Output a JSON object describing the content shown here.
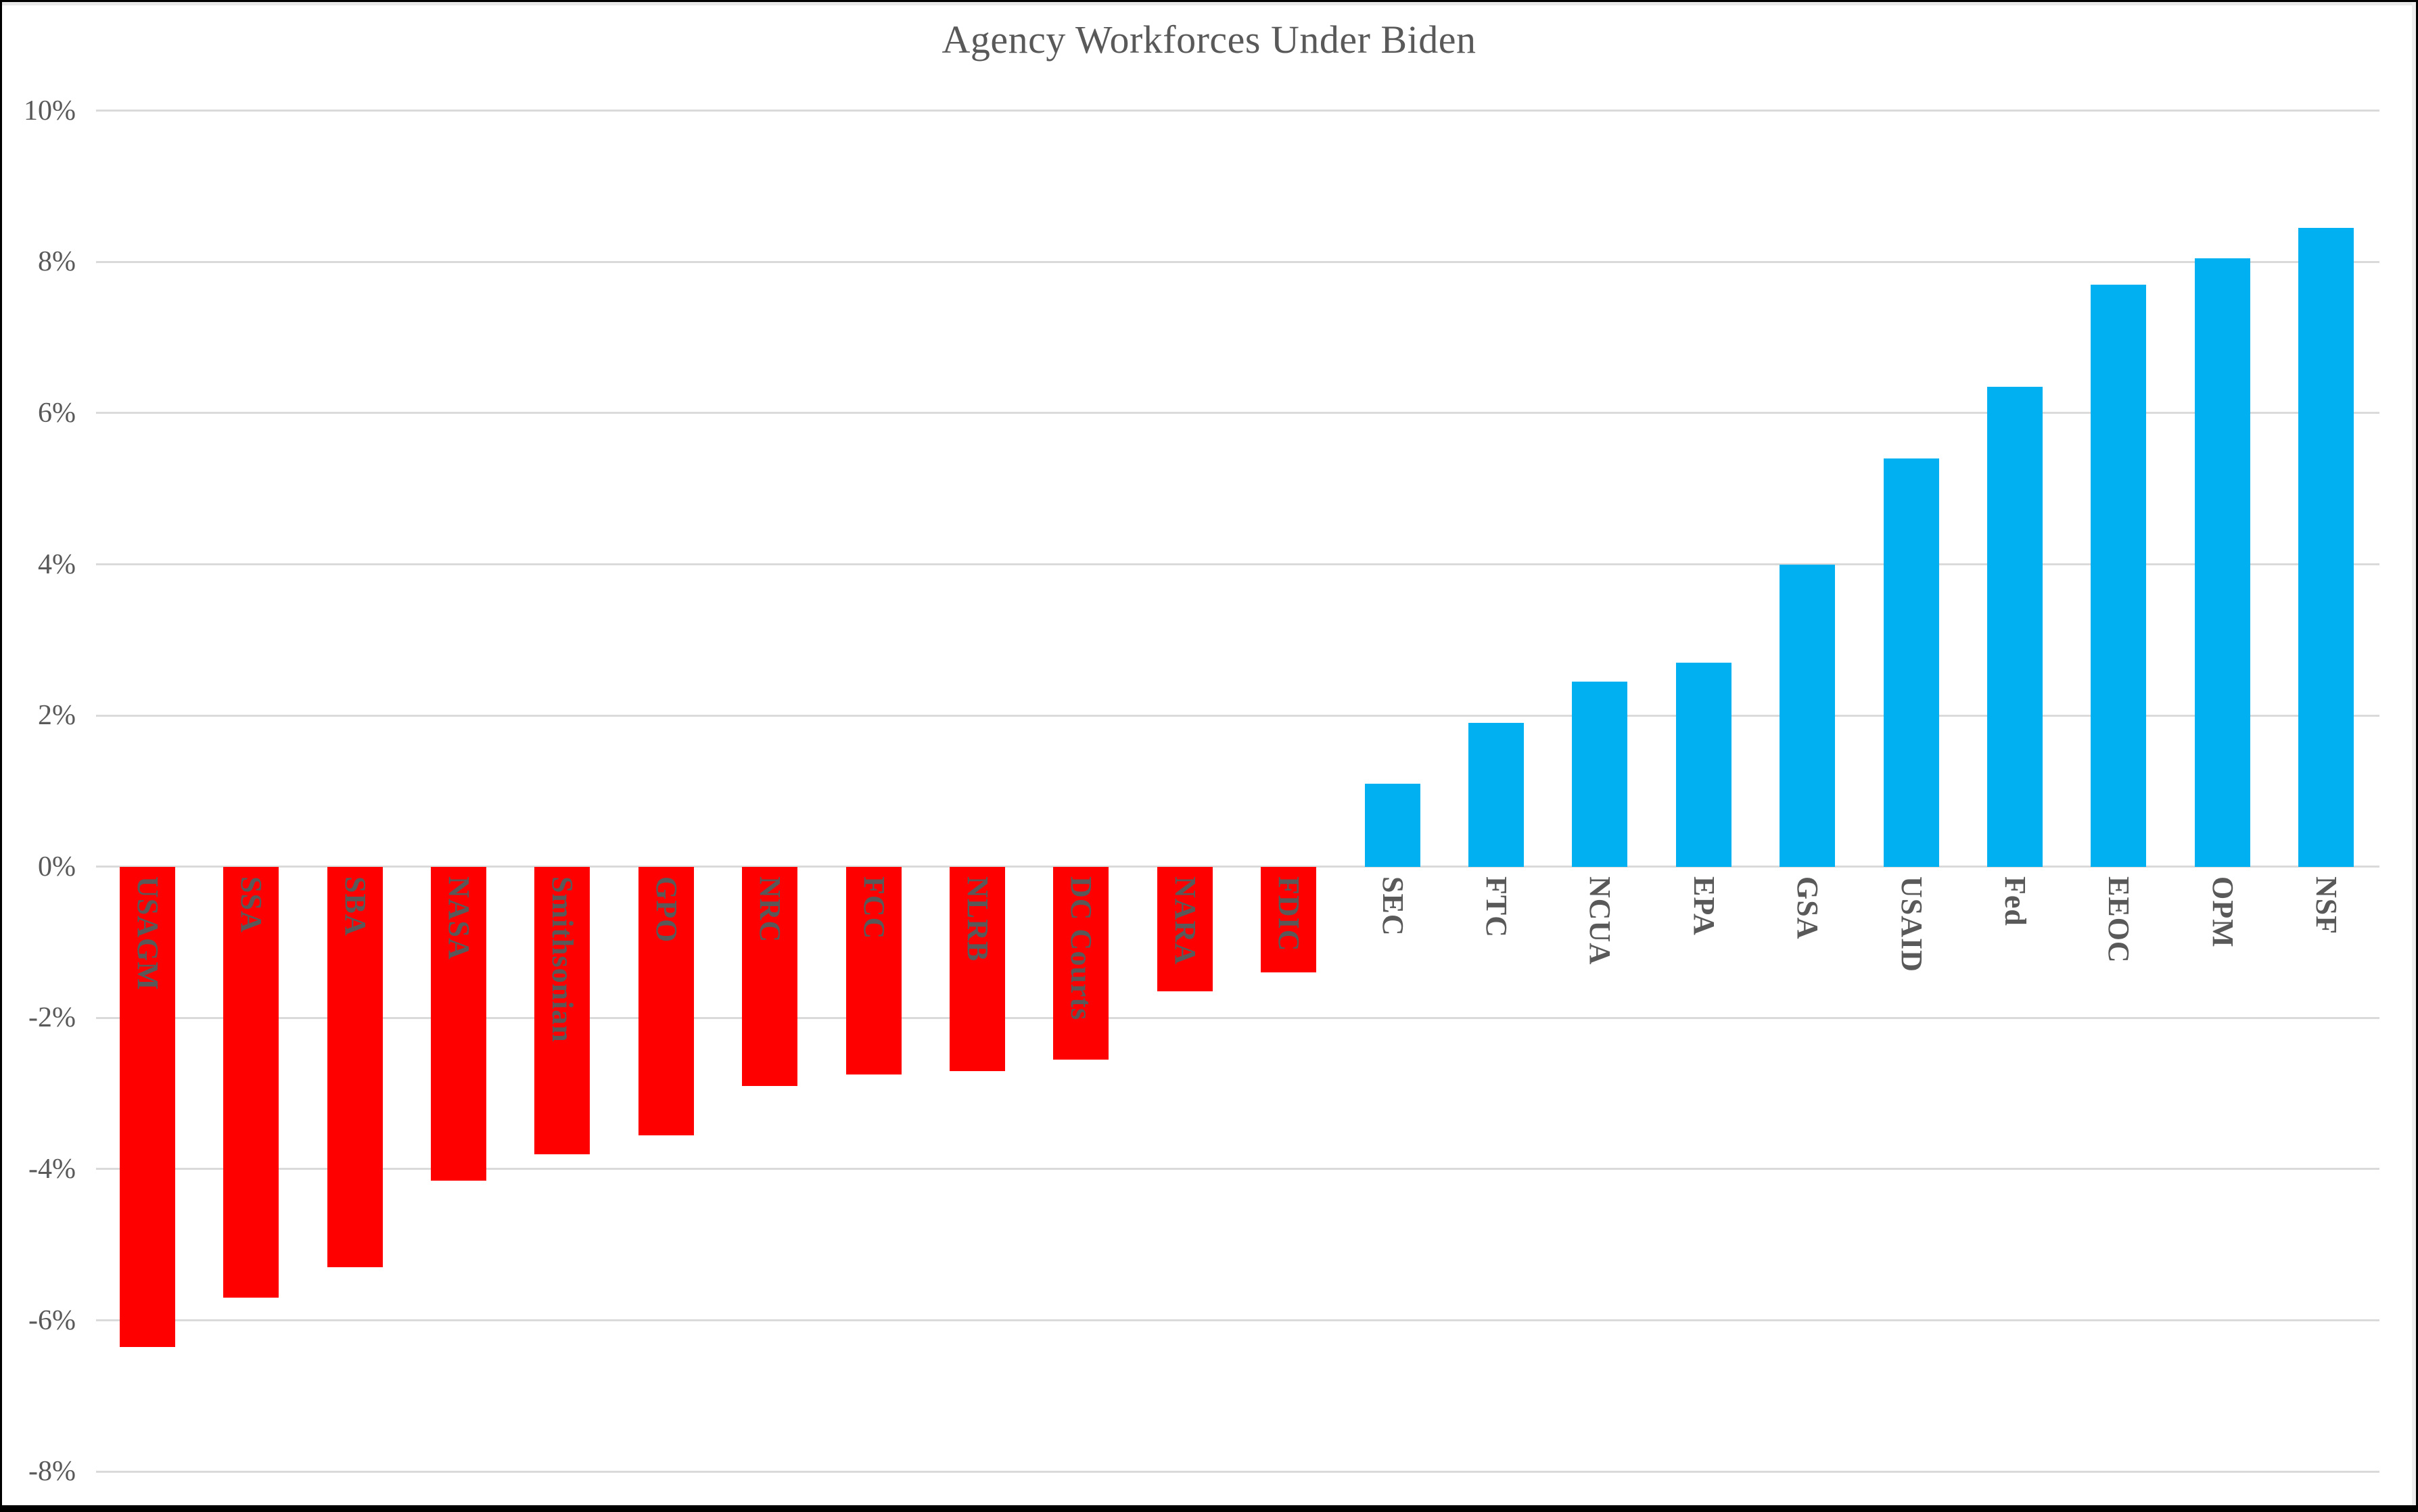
{
  "title": "Agency Workforces Under Biden",
  "chart_data": {
    "type": "bar",
    "title": "Agency Workforces Under Biden",
    "unit": "percent",
    "categories": [
      "USAGM",
      "SSA",
      "SBA",
      "NASA",
      "Smithsonian",
      "GPO",
      "NRC",
      "FCC",
      "NLRB",
      "DC Courts",
      "NARA",
      "FDIC",
      "SEC",
      "FTC",
      "NCUA",
      "EPA",
      "GSA",
      "USAID",
      "Fed",
      "EEOC",
      "OPM",
      "NSF"
    ],
    "values": [
      -6.35,
      -5.7,
      -5.3,
      -4.15,
      -3.8,
      -3.55,
      -2.9,
      -2.75,
      -2.7,
      -2.55,
      -1.65,
      -1.4,
      1.1,
      1.9,
      2.45,
      2.7,
      4.0,
      5.4,
      6.35,
      7.7,
      8.05,
      8.45
    ],
    "xlabel": "",
    "ylabel": "",
    "ylim": [
      -8,
      10
    ],
    "ytick_step": 2,
    "ytick_labels": [
      "10%",
      "8%",
      "6%",
      "4%",
      "2%",
      "0%",
      "-2%",
      "-4%",
      "-6%",
      "-8%"
    ],
    "grid": true,
    "legend": "none",
    "colors": {
      "negative_bar": "#ff0000",
      "positive_bar": "#00b0f0",
      "text": "#595959",
      "gridline": "#dadada",
      "border": "#000000",
      "background": "#ffffff"
    },
    "bar_label_position": "rotated 90deg, anchored just below the zero axis"
  }
}
